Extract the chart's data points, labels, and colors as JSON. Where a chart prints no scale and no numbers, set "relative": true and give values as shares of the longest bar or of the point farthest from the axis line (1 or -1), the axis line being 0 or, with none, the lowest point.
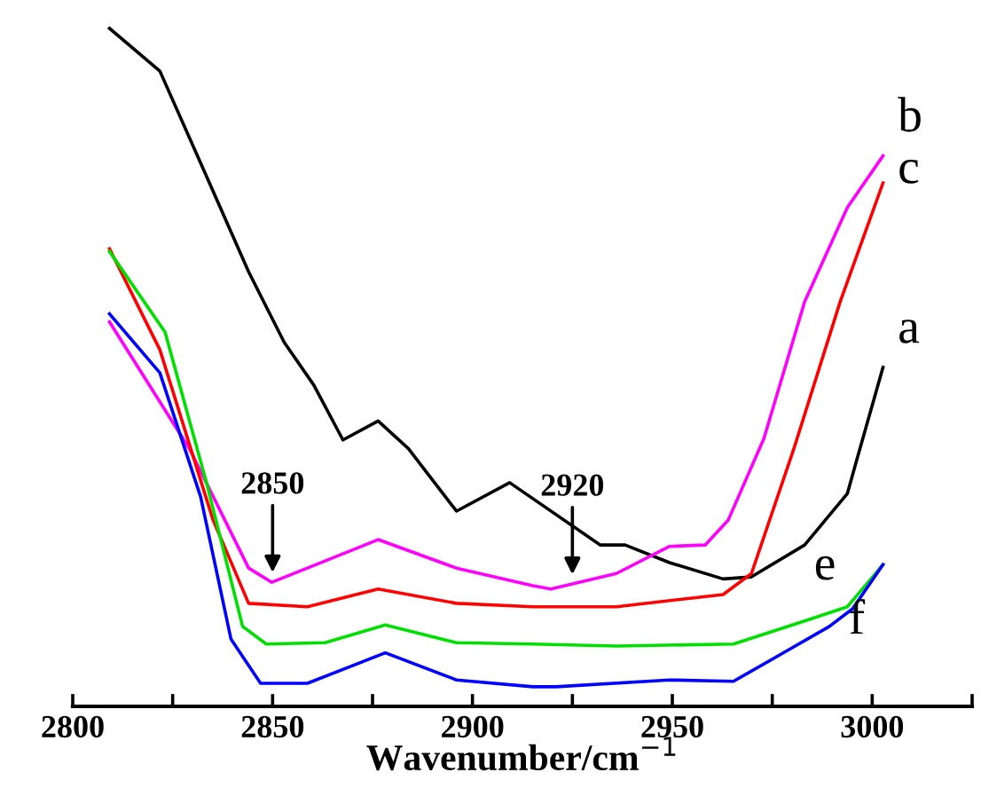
{
  "chart_data": {
    "type": "line",
    "relative": true,
    "xlabel": "Wavenumber/cm$^{−1}$",
    "xlim": [
      2800,
      3025
    ],
    "xticks": [
      2800,
      {
        "value": 2825,
        "label": null
      },
      2850,
      {
        "value": 2875,
        "label": null
      },
      2900,
      {
        "value": 2925,
        "label": null
      },
      2950,
      {
        "value": 2975,
        "label": null
      },
      3000,
      {
        "value": 3025,
        "label": null
      }
    ],
    "grid": false,
    "legend": false,
    "marker": "none",
    "line_style": "solid",
    "series": [
      {
        "name": "a",
        "color": "#000000",
        "x": [
          2809.2,
          2821.8,
          2833.6,
          2844.0,
          2852.9,
          2860.3,
          2867.6,
          2876.4,
          2884.0,
          2896.0,
          2909.3,
          2932.0,
          2938.2,
          2949.3,
          2962.7,
          2969.8,
          2983.1,
          2993.8,
          2996.4,
          3002.7
        ],
        "values": [
          1.0,
          0.937,
          0.78,
          0.641,
          0.537,
          0.474,
          0.393,
          0.421,
          0.38,
          0.288,
          0.33,
          0.238,
          0.238,
          0.212,
          0.188,
          0.191,
          0.238,
          0.314,
          0.369,
          0.5
        ]
      },
      {
        "name": "b",
        "color": "#ff00ff",
        "x": [
          2809.2,
          2829.2,
          2844.0,
          2849.8,
          2858.7,
          2876.4,
          2896.0,
          2915.1,
          2919.6,
          2936.0,
          2949.3,
          2958.2,
          2964.0,
          2972.9,
          2983.1,
          2993.8,
          3002.7
        ],
        "values": [
          0.567,
          0.38,
          0.204,
          0.183,
          0.204,
          0.246,
          0.204,
          0.178,
          0.173,
          0.196,
          0.236,
          0.238,
          0.275,
          0.395,
          0.597,
          0.736,
          0.812
        ]
      },
      {
        "name": "c",
        "color": "#ff0000",
        "x": [
          2809.2,
          2821.8,
          2835.1,
          2844.0,
          2858.7,
          2876.4,
          2896.0,
          2915.1,
          2936.0,
          2962.7,
          2969.8,
          2980.4,
          2992.0,
          3002.7
        ],
        "values": [
          0.675,
          0.526,
          0.275,
          0.152,
          0.147,
          0.173,
          0.152,
          0.147,
          0.147,
          0.165,
          0.196,
          0.38,
          0.597,
          0.772
        ]
      },
      {
        "name": "e",
        "color": "#00e000",
        "x": [
          2809.2,
          2823.1,
          2833.6,
          2842.5,
          2848.4,
          2863.1,
          2878.2,
          2896.0,
          2915.1,
          2936.0,
          2965.3,
          2983.1,
          2993.8,
          3002.7
        ],
        "values": [
          0.671,
          0.552,
          0.327,
          0.118,
          0.092,
          0.094,
          0.12,
          0.094,
          0.092,
          0.089,
          0.092,
          0.126,
          0.147,
          0.209
        ]
      },
      {
        "name": "f",
        "color": "#0000ff",
        "x": [
          2809.2,
          2821.8,
          2832.0,
          2839.6,
          2847.0,
          2858.7,
          2878.2,
          2896.0,
          2915.1,
          2920.9,
          2949.3,
          2965.3,
          2976.0,
          2989.3,
          2995.1,
          3002.7
        ],
        "values": [
          0.579,
          0.492,
          0.309,
          0.099,
          0.034,
          0.034,
          0.079,
          0.039,
          0.029,
          0.029,
          0.039,
          0.037,
          0.073,
          0.118,
          0.144,
          0.209
        ]
      }
    ],
    "annotations": [
      {
        "text": "2850",
        "x": 2850,
        "y": 0.183
      },
      {
        "text": "2920",
        "x": 2925,
        "y": 0.18
      }
    ]
  }
}
